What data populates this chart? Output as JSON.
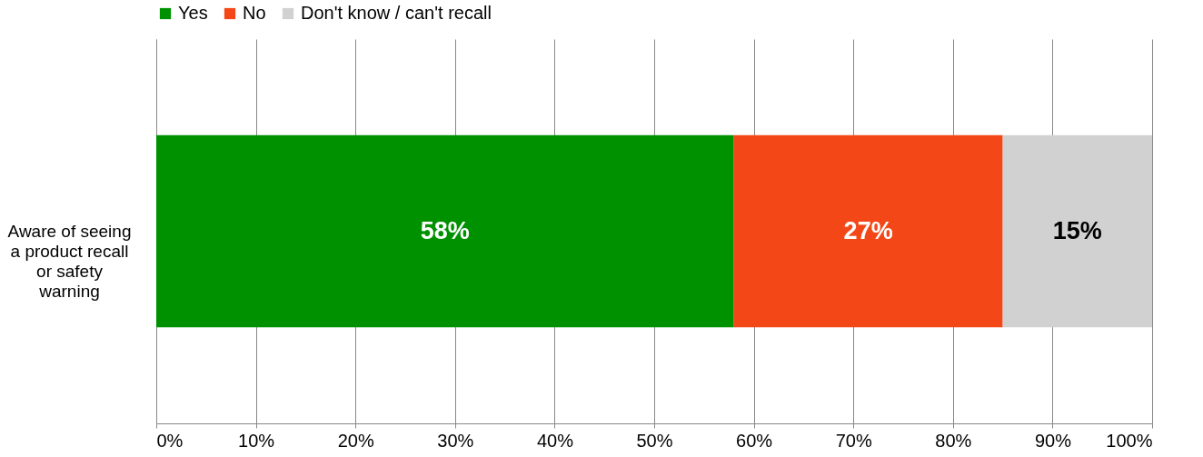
{
  "chart_data": {
    "type": "bar",
    "orientation": "horizontal",
    "stacked": true,
    "categories": [
      "Aware of seeing a product recall or safety warning"
    ],
    "series": [
      {
        "name": "Yes",
        "color": "#009100",
        "values": [
          58
        ],
        "value_labels": [
          "58%"
        ]
      },
      {
        "name": "No",
        "color": "#f44717",
        "values": [
          27
        ],
        "value_labels": [
          "27%"
        ]
      },
      {
        "name": "Don't know / can't recall",
        "color": "#d1d1d1",
        "values": [
          15
        ],
        "value_labels": [
          "15%"
        ]
      }
    ],
    "xlim": [
      0,
      100
    ],
    "xticks": [
      {
        "value": 0,
        "label": "0%"
      },
      {
        "value": 10,
        "label": "10%"
      },
      {
        "value": 20,
        "label": "20%"
      },
      {
        "value": 30,
        "label": "30%"
      },
      {
        "value": 40,
        "label": "40%"
      },
      {
        "value": 50,
        "label": "50%"
      },
      {
        "value": 60,
        "label": "60%"
      },
      {
        "value": 70,
        "label": "70%"
      },
      {
        "value": 80,
        "label": "80%"
      },
      {
        "value": 90,
        "label": "90%"
      },
      {
        "value": 100,
        "label": "100%"
      }
    ],
    "grid": "x",
    "legend": "top"
  }
}
